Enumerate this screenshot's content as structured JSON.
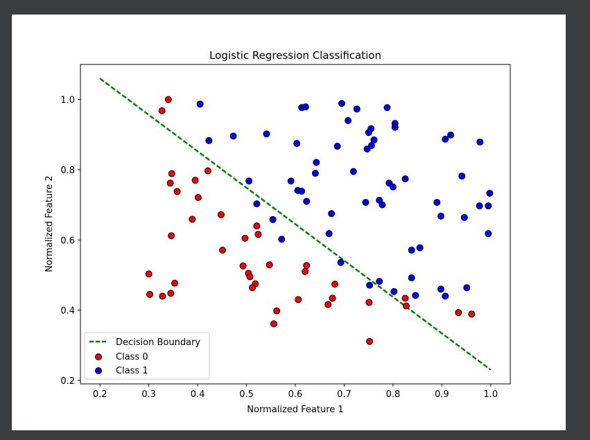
{
  "chart_data": {
    "type": "scatter",
    "title": "Logistic Regression Classification",
    "xlabel": "Normalized Feature 1",
    "ylabel": "Normalized Feature 2",
    "xlim": [
      0.16,
      1.04
    ],
    "ylim": [
      0.19,
      1.1
    ],
    "xticks": [
      0.2,
      0.3,
      0.4,
      0.5,
      0.6,
      0.7,
      0.8,
      0.9,
      1.0
    ],
    "yticks": [
      0.2,
      0.4,
      0.6,
      0.8,
      1.0
    ],
    "grid": false,
    "legend_position": "lower-left",
    "legend": [
      "Decision Boundary",
      "Class 0",
      "Class 1"
    ],
    "decision_boundary": {
      "name": "Decision Boundary",
      "color": "#008000",
      "points": [
        [
          0.2,
          1.06
        ],
        [
          1.0,
          0.23
        ]
      ]
    },
    "series": [
      {
        "name": "Class 0",
        "color": "#ff0000",
        "points": [
          [
            0.34,
            1.0
          ],
          [
            0.327,
            0.968
          ],
          [
            0.347,
            0.789
          ],
          [
            0.344,
            0.762
          ],
          [
            0.358,
            0.738
          ],
          [
            0.421,
            0.797
          ],
          [
            0.395,
            0.77
          ],
          [
            0.401,
            0.721
          ],
          [
            0.389,
            0.659
          ],
          [
            0.448,
            0.672
          ],
          [
            0.346,
            0.612
          ],
          [
            0.451,
            0.571
          ],
          [
            0.3,
            0.503
          ],
          [
            0.353,
            0.477
          ],
          [
            0.302,
            0.445
          ],
          [
            0.328,
            0.44
          ],
          [
            0.345,
            0.448
          ],
          [
            0.521,
            0.64
          ],
          [
            0.524,
            0.616
          ],
          [
            0.497,
            0.605
          ],
          [
            0.547,
            0.529
          ],
          [
            0.493,
            0.526
          ],
          [
            0.504,
            0.505
          ],
          [
            0.507,
            0.495
          ],
          [
            0.518,
            0.475
          ],
          [
            0.512,
            0.464
          ],
          [
            0.623,
            0.527
          ],
          [
            0.62,
            0.51
          ],
          [
            0.606,
            0.43
          ],
          [
            0.562,
            0.398
          ],
          [
            0.556,
            0.361
          ],
          [
            0.681,
            0.474
          ],
          [
            0.676,
            0.434
          ],
          [
            0.667,
            0.416
          ],
          [
            0.751,
            0.422
          ],
          [
            0.752,
            0.311
          ],
          [
            0.825,
            0.434
          ],
          [
            0.827,
            0.412
          ],
          [
            0.934,
            0.393
          ],
          [
            0.961,
            0.389
          ]
        ]
      },
      {
        "name": "Class 1",
        "color": "#0000ff",
        "points": [
          [
            0.405,
            0.987
          ],
          [
            0.423,
            0.883
          ],
          [
            0.473,
            0.896
          ],
          [
            0.541,
            0.902
          ],
          [
            0.613,
            0.977
          ],
          [
            0.621,
            0.979
          ],
          [
            0.695,
            0.989
          ],
          [
            0.726,
            0.973
          ],
          [
            0.788,
            0.977
          ],
          [
            0.708,
            0.94
          ],
          [
            0.804,
            0.932
          ],
          [
            0.804,
            0.921
          ],
          [
            0.755,
            0.917
          ],
          [
            0.75,
            0.906
          ],
          [
            0.761,
            0.885
          ],
          [
            0.603,
            0.875
          ],
          [
            0.686,
            0.867
          ],
          [
            0.756,
            0.869
          ],
          [
            0.747,
            0.859
          ],
          [
            0.643,
            0.821
          ],
          [
            0.641,
            0.79
          ],
          [
            0.719,
            0.795
          ],
          [
            0.505,
            0.768
          ],
          [
            0.591,
            0.768
          ],
          [
            0.605,
            0.741
          ],
          [
            0.613,
            0.739
          ],
          [
            0.623,
            0.71
          ],
          [
            0.521,
            0.703
          ],
          [
            0.554,
            0.658
          ],
          [
            0.674,
            0.675
          ],
          [
            0.744,
            0.707
          ],
          [
            0.772,
            0.713
          ],
          [
            0.778,
            0.7
          ],
          [
            0.792,
            0.762
          ],
          [
            0.8,
            0.751
          ],
          [
            0.825,
            0.774
          ],
          [
            0.669,
            0.618
          ],
          [
            0.572,
            0.602
          ],
          [
            0.693,
            0.536
          ],
          [
            0.838,
            0.571
          ],
          [
            0.855,
            0.578
          ],
          [
            0.89,
            0.707
          ],
          [
            0.898,
            0.668
          ],
          [
            0.907,
            0.887
          ],
          [
            0.918,
            0.899
          ],
          [
            0.941,
            0.782
          ],
          [
            0.946,
            0.664
          ],
          [
            0.978,
            0.879
          ],
          [
            0.977,
            0.697
          ],
          [
            0.995,
            0.697
          ],
          [
            0.998,
            0.733
          ],
          [
            0.995,
            0.618
          ],
          [
            0.838,
            0.492
          ],
          [
            0.846,
            0.442
          ],
          [
            0.772,
            0.482
          ],
          [
            0.752,
            0.471
          ],
          [
            0.802,
            0.453
          ],
          [
            0.898,
            0.46
          ],
          [
            0.907,
            0.44
          ],
          [
            0.951,
            0.464
          ]
        ]
      }
    ]
  }
}
